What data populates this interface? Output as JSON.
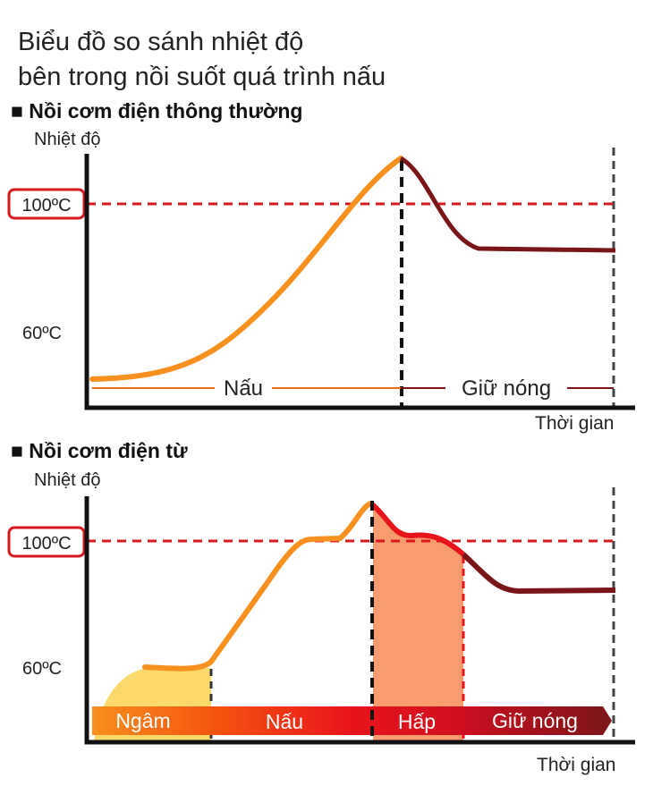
{
  "title": {
    "line1": "Biểu đồ so sánh nhiệt độ",
    "line2": "bên trong nồi suốt quá trình nấu"
  },
  "colors": {
    "orange": "#f7901e",
    "red": "#e8141c",
    "dark_red": "#7a1518",
    "yellow_fill": "#fbd96a",
    "salmon_fill": "#f89b6e",
    "reference_line": "#d7191f"
  },
  "chart1": {
    "heading": "■ Nồi cơm điện thông thường",
    "ylabel": "Nhiệt độ",
    "label_100": "100ºC",
    "label_60": "60ºC",
    "xlabel": "Thời gian",
    "phases": [
      "Nấu",
      "Giữ nóng"
    ]
  },
  "chart2": {
    "heading": "■ Nồi cơm điện từ",
    "ylabel": "Nhiệt độ",
    "label_100": "100ºC",
    "label_60": "60ºC",
    "xlabel": "Thời gian",
    "phases": [
      "Ngâm",
      "Nấu",
      "Hấp",
      "Giữ nóng"
    ]
  }
}
